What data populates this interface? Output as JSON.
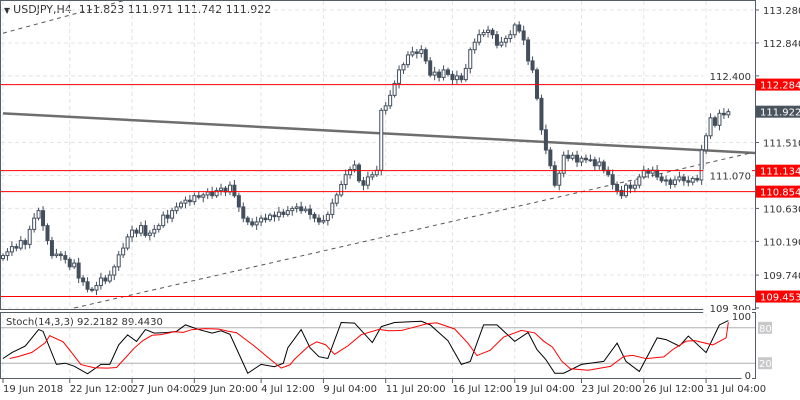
{
  "header": {
    "symbol": "USDJPY,H4",
    "ohlc": "111.823 111.971 111.742 111.922",
    "menu_icon": "triangle-down-icon"
  },
  "stoch_panel": {
    "label": "Stoch(14,3,3) 92.2182 89.4430"
  },
  "chart_data": {
    "type": "candlestick",
    "symbol": "USDJPY",
    "timeframe": "H4",
    "ylim": [
      109.3,
      113.28
    ],
    "y_ticks": [
      "113.280",
      "112.840",
      "112.400",
      "111.510",
      "111.070",
      "110.630",
      "110.190",
      "109.740",
      "109.300"
    ],
    "x_ticks": [
      {
        "label": "19 Jun 2018",
        "index": 0
      },
      {
        "label": "22 Jun 12:00",
        "index": 15
      },
      {
        "label": "27 Jun 04:00",
        "index": 29
      },
      {
        "label": "29 Jun 20:00",
        "index": 43
      },
      {
        "label": "4 Jul 12:00",
        "index": 58
      },
      {
        "label": "9 Jul 04:00",
        "index": 72
      },
      {
        "label": "11 Jul 20:00",
        "index": 86
      },
      {
        "label": "16 Jul 12:00",
        "index": 101
      },
      {
        "label": "19 Jul 04:00",
        "index": 115
      },
      {
        "label": "23 Jul 20:00",
        "index": 130
      },
      {
        "label": "26 Jul 12:00",
        "index": 144
      },
      {
        "label": "31 Jul 04:00",
        "index": 158
      }
    ],
    "grid": true,
    "closes": [
      110.0,
      110.05,
      110.12,
      110.1,
      110.2,
      110.15,
      110.35,
      110.5,
      110.6,
      110.4,
      110.2,
      110.0,
      110.02,
      110.0,
      109.95,
      109.85,
      109.9,
      109.7,
      109.65,
      109.55,
      109.54,
      109.6,
      109.7,
      109.66,
      109.74,
      109.85,
      110.01,
      110.1,
      110.25,
      110.34,
      110.3,
      110.4,
      110.27,
      110.3,
      110.35,
      110.4,
      110.54,
      110.5,
      110.6,
      110.65,
      110.7,
      110.74,
      110.72,
      110.8,
      110.78,
      110.81,
      110.85,
      110.8,
      110.87,
      110.9,
      110.85,
      110.94,
      110.8,
      110.65,
      110.5,
      110.45,
      110.41,
      110.45,
      110.5,
      110.48,
      110.54,
      110.52,
      110.58,
      110.55,
      110.6,
      110.63,
      110.65,
      110.6,
      110.62,
      110.55,
      110.5,
      110.45,
      110.47,
      110.55,
      110.7,
      110.81,
      110.95,
      111.08,
      111.15,
      111.21,
      111.0,
      110.94,
      111.05,
      111.08,
      111.14,
      111.94,
      112.0,
      112.14,
      112.3,
      112.48,
      112.55,
      112.68,
      112.72,
      112.7,
      112.75,
      112.6,
      112.41,
      112.45,
      112.38,
      112.48,
      112.42,
      112.35,
      112.4,
      112.35,
      112.5,
      112.75,
      112.85,
      112.95,
      112.98,
      113.01,
      112.95,
      112.81,
      112.85,
      112.9,
      112.95,
      113.08,
      113.0,
      112.88,
      112.6,
      112.48,
      112.1,
      111.68,
      111.41,
      111.2,
      110.94,
      111.1,
      111.34,
      111.3,
      111.34,
      111.25,
      111.3,
      111.28,
      111.28,
      111.2,
      111.25,
      111.14,
      111.08,
      110.95,
      110.87,
      110.8,
      110.94,
      110.9,
      110.94,
      111.05,
      111.14,
      111.1,
      111.14,
      111.05,
      111.0,
      111.01,
      110.95,
      111.01,
      111.05,
      111.0,
      110.98,
      111.03,
      111.01,
      111.41,
      111.6,
      111.84,
      111.74,
      111.9,
      111.88,
      111.922
    ],
    "current_price": "111.922",
    "horizontal_levels": [
      {
        "price": "112.284",
        "color": "#ff0000"
      },
      {
        "price": "111.134",
        "color": "#ff0000"
      },
      {
        "price": "110.854",
        "color": "#ff0000"
      },
      {
        "price": "109.453",
        "color": "#ff0000"
      }
    ],
    "trendlines": [
      {
        "style": "solid",
        "color": "#6e6e6e",
        "points": [
          [
            0,
            111.9
          ],
          [
            169,
            111.37
          ]
        ]
      },
      {
        "style": "dashed",
        "color": "#555555",
        "points": [
          [
            16,
            109.3
          ],
          [
            168,
            111.37
          ]
        ]
      },
      {
        "style": "dashed",
        "color": "#555555",
        "points": [
          [
            0,
            112.97
          ],
          [
            28,
            113.42
          ]
        ]
      }
    ],
    "stochastic": {
      "params": "14,3,3",
      "k_last": 92.2182,
      "d_last": 89.443,
      "levels": [
        "80",
        "20"
      ],
      "axis_labels": [
        "100",
        "0"
      ],
      "k_color": "#000000",
      "d_color": "#ff0000",
      "k": [
        [
          0,
          28
        ],
        [
          2,
          38
        ],
        [
          5,
          49
        ],
        [
          8,
          77
        ],
        [
          9,
          74
        ],
        [
          12,
          18
        ],
        [
          14,
          20
        ],
        [
          16,
          15
        ],
        [
          19,
          2
        ],
        [
          22,
          18
        ],
        [
          24,
          18
        ],
        [
          26,
          51
        ],
        [
          28,
          68
        ],
        [
          30,
          57
        ],
        [
          32,
          77
        ],
        [
          34,
          71
        ],
        [
          37,
          72
        ],
        [
          39,
          74
        ],
        [
          41,
          85
        ],
        [
          44,
          77
        ],
        [
          47,
          71
        ],
        [
          49,
          75
        ],
        [
          51,
          69
        ],
        [
          55,
          3
        ],
        [
          58,
          18
        ],
        [
          61,
          14
        ],
        [
          63,
          20
        ],
        [
          64,
          46
        ],
        [
          67,
          77
        ],
        [
          69,
          46
        ],
        [
          71,
          31
        ],
        [
          73,
          28
        ],
        [
          76,
          89
        ],
        [
          79,
          88
        ],
        [
          83,
          55
        ],
        [
          85,
          82
        ],
        [
          88,
          89
        ],
        [
          94,
          91
        ],
        [
          96,
          85
        ],
        [
          100,
          58
        ],
        [
          103,
          18
        ],
        [
          105,
          23
        ],
        [
          108,
          85
        ],
        [
          111,
          85
        ],
        [
          115,
          57
        ],
        [
          118,
          72
        ],
        [
          120,
          43
        ],
        [
          122,
          26
        ],
        [
          124,
          3
        ],
        [
          126,
          3
        ],
        [
          130,
          18
        ],
        [
          135,
          23
        ],
        [
          138,
          54
        ],
        [
          140,
          23
        ],
        [
          143,
          6
        ],
        [
          147,
          63
        ],
        [
          149,
          60
        ],
        [
          152,
          49
        ],
        [
          154,
          66
        ],
        [
          158,
          38
        ],
        [
          161,
          85
        ],
        [
          163,
          92.22
        ]
      ]
    },
    "colors": {
      "candle": "#434e5c",
      "axis": "#555d66",
      "grid": "#e4e4e4",
      "level": "#ff0000",
      "price_label_bg": "#4a545e"
    }
  }
}
